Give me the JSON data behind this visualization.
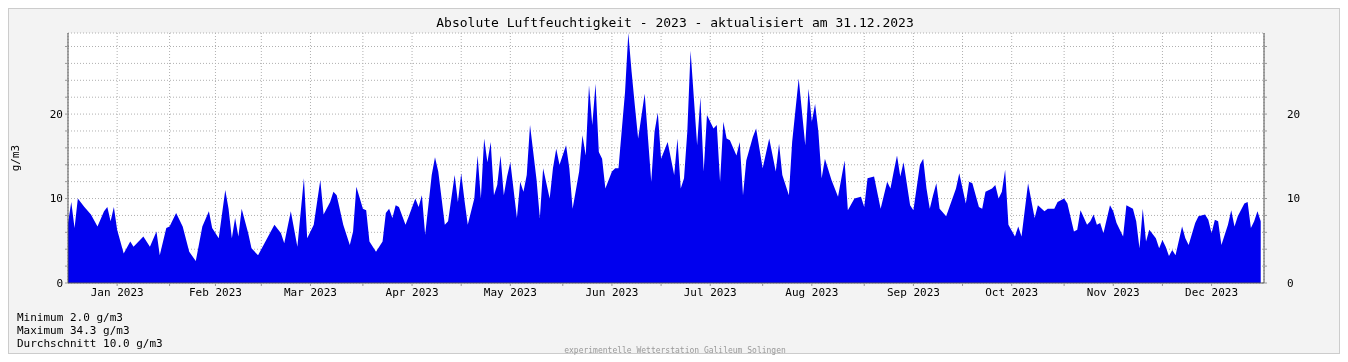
{
  "chart_data": {
    "type": "area",
    "title": "Absolute Luftfeuchtigkeit - 2023 - aktualisiert am 31.12.2023",
    "ylabel": "g/m3",
    "annotations": [
      "Minimum 2.0 g/m3",
      "Maximum 34.3 g/m3",
      "Durchschnitt 10.0 g/m3",
      "experimentelle Wetterstation Galileum Solingen"
    ],
    "x": [
      "2023-01-01",
      "2023-01-02",
      "2023-01-03",
      "2023-01-04",
      "2023-01-06",
      "2023-01-08",
      "2023-01-10",
      "2023-01-12",
      "2023-01-13",
      "2023-01-14",
      "2023-01-15",
      "2023-01-16",
      "2023-01-18",
      "2023-01-20",
      "2023-01-21",
      "2023-01-24",
      "2023-01-26",
      "2023-01-28",
      "2023-01-29",
      "2023-01-31",
      "2023-02-01",
      "2023-02-03",
      "2023-02-05",
      "2023-02-07",
      "2023-02-09",
      "2023-02-11",
      "2023-02-13",
      "2023-02-14",
      "2023-02-16",
      "2023-02-18",
      "2023-02-19",
      "2023-02-20",
      "2023-02-21",
      "2023-02-22",
      "2023-02-23",
      "2023-02-25",
      "2023-02-26",
      "2023-02-28",
      "2023-03-05",
      "2023-03-07",
      "2023-03-08",
      "2023-03-10",
      "2023-03-12",
      "2023-03-14",
      "2023-03-15",
      "2023-03-17",
      "2023-03-19",
      "2023-03-20",
      "2023-03-22",
      "2023-03-23",
      "2023-03-24",
      "2023-03-26",
      "2023-03-28",
      "2023-03-29",
      "2023-03-30",
      "2023-04-01",
      "2023-04-02",
      "2023-04-03",
      "2023-04-05",
      "2023-04-07",
      "2023-04-08",
      "2023-04-09",
      "2023-04-10",
      "2023-04-11",
      "2023-04-12",
      "2023-04-14",
      "2023-04-15",
      "2023-04-17",
      "2023-04-18",
      "2023-04-19",
      "2023-04-20",
      "2023-04-22",
      "2023-04-23",
      "2023-04-24",
      "2023-04-26",
      "2023-04-27",
      "2023-04-29",
      "2023-04-30",
      "2023-05-01",
      "2023-05-02",
      "2023-05-03",
      "2023-05-05",
      "2023-05-06",
      "2023-05-07",
      "2023-05-08",
      "2023-05-09",
      "2023-05-10",
      "2023-05-11",
      "2023-05-12",
      "2023-05-13",
      "2023-05-14",
      "2023-05-15",
      "2023-05-16",
      "2023-05-18",
      "2023-05-19",
      "2023-05-20",
      "2023-05-21",
      "2023-05-22",
      "2023-05-24",
      "2023-05-25",
      "2023-05-26",
      "2023-05-28",
      "2023-05-29",
      "2023-05-30",
      "2023-05-31",
      "2023-06-02",
      "2023-06-03",
      "2023-06-04",
      "2023-06-06",
      "2023-06-07",
      "2023-06-08",
      "2023-06-09",
      "2023-06-10",
      "2023-06-11",
      "2023-06-12",
      "2023-06-13",
      "2023-06-14",
      "2023-06-16",
      "2023-06-17",
      "2023-06-18",
      "2023-06-20",
      "2023-06-21",
      "2023-06-22",
      "2023-06-23",
      "2023-06-24",
      "2023-06-26",
      "2023-06-28",
      "2023-06-29",
      "2023-06-30",
      "2023-07-01",
      "2023-07-03",
      "2023-07-05",
      "2023-07-06",
      "2023-07-07",
      "2023-07-08",
      "2023-07-09",
      "2023-07-10",
      "2023-07-12",
      "2023-07-13",
      "2023-07-14",
      "2023-07-15",
      "2023-07-17",
      "2023-07-18",
      "2023-07-19",
      "2023-07-20",
      "2023-07-21",
      "2023-07-22",
      "2023-07-24",
      "2023-07-25",
      "2023-07-26",
      "2023-07-27",
      "2023-07-29",
      "2023-07-30",
      "2023-08-01",
      "2023-08-03",
      "2023-08-05",
      "2023-08-06",
      "2023-08-07",
      "2023-08-09",
      "2023-08-10",
      "2023-08-12",
      "2023-08-14",
      "2023-08-15",
      "2023-08-16",
      "2023-08-17",
      "2023-08-18",
      "2023-08-19",
      "2023-08-20",
      "2023-08-22",
      "2023-08-24",
      "2023-08-26",
      "2023-08-27",
      "2023-08-29",
      "2023-08-31",
      "2023-09-01",
      "2023-09-02",
      "2023-09-04",
      "2023-09-06",
      "2023-09-08",
      "2023-09-09",
      "2023-09-10",
      "2023-09-11",
      "2023-09-12",
      "2023-09-13",
      "2023-09-15",
      "2023-09-16",
      "2023-09-18",
      "2023-09-19",
      "2023-09-20",
      "2023-09-21",
      "2023-09-22",
      "2023-09-23",
      "2023-09-24",
      "2023-09-26",
      "2023-09-27",
      "2023-09-29",
      "2023-09-30",
      "2023-10-02",
      "2023-10-03",
      "2023-10-04",
      "2023-10-06",
      "2023-10-07",
      "2023-10-08",
      "2023-10-10",
      "2023-10-11",
      "2023-10-12",
      "2023-10-13",
      "2023-10-14",
      "2023-10-15",
      "2023-10-17",
      "2023-10-18",
      "2023-10-19",
      "2023-10-21",
      "2023-10-23",
      "2023-10-24",
      "2023-10-26",
      "2023-10-27",
      "2023-10-29",
      "2023-10-30",
      "2023-11-01",
      "2023-11-02",
      "2023-11-04",
      "2023-11-05",
      "2023-11-06",
      "2023-11-08",
      "2023-11-09",
      "2023-11-10",
      "2023-11-11",
      "2023-11-12",
      "2023-11-13",
      "2023-11-15",
      "2023-11-16",
      "2023-11-17",
      "2023-11-19",
      "2023-11-20",
      "2023-11-22",
      "2023-11-23",
      "2023-11-24",
      "2023-11-25",
      "2023-11-26",
      "2023-11-27",
      "2023-11-29",
      "2023-11-30",
      "2023-12-01",
      "2023-12-02",
      "2023-12-03",
      "2023-12-04",
      "2023-12-05",
      "2023-12-07",
      "2023-12-08",
      "2023-12-09",
      "2023-12-11",
      "2023-12-12",
      "2023-12-14",
      "2023-12-15",
      "2023-12-16",
      "2023-12-17",
      "2023-12-18",
      "2023-12-19",
      "2023-12-21",
      "2023-12-22",
      "2023-12-23",
      "2023-12-24",
      "2023-12-26",
      "2023-12-27",
      "2023-12-28",
      "2023-12-29",
      "2023-12-30",
      "2023-12-31"
    ],
    "series": [
      {
        "color": "#0000ee",
        "values": [
          7.1,
          9.6,
          6.5,
          10.0,
          9.0,
          8.1,
          6.7,
          8.5,
          9.0,
          7.3,
          9.0,
          6.3,
          3.5,
          4.9,
          4.3,
          5.5,
          4.3,
          6.1,
          3.3,
          6.5,
          6.7,
          8.3,
          6.7,
          3.7,
          2.6,
          6.7,
          8.5,
          6.5,
          5.3,
          11.0,
          8.8,
          5.3,
          7.7,
          5.5,
          8.8,
          5.9,
          4.1,
          3.3,
          6.9,
          5.9,
          4.7,
          8.5,
          4.3,
          12.4,
          5.3,
          6.9,
          12.2,
          8.1,
          9.6,
          10.8,
          10.4,
          6.9,
          4.5,
          6.1,
          11.4,
          8.8,
          8.6,
          4.9,
          3.7,
          4.9,
          8.3,
          8.8,
          7.7,
          9.2,
          9.0,
          6.9,
          7.9,
          10.0,
          9.0,
          10.4,
          5.7,
          12.8,
          14.9,
          13.2,
          6.9,
          7.3,
          12.8,
          9.6,
          13.0,
          9.8,
          6.9,
          10.0,
          15.1,
          10.0,
          17.1,
          14.3,
          16.7,
          10.4,
          11.6,
          15.1,
          10.4,
          12.6,
          14.3,
          7.7,
          12.0,
          10.8,
          12.8,
          18.7,
          12.2,
          7.7,
          13.6,
          10.0,
          13.6,
          15.9,
          14.0,
          16.3,
          13.6,
          8.8,
          13.2,
          17.5,
          15.1,
          23.4,
          18.7,
          23.6,
          15.5,
          14.7,
          11.2,
          13.2,
          13.6,
          13.6,
          22.6,
          29.6,
          25.0,
          21.0,
          17.1,
          22.4,
          12.0,
          17.9,
          20.2,
          14.7,
          16.7,
          12.8,
          17.1,
          11.2,
          12.4,
          17.9,
          27.5,
          16.3,
          22.0,
          13.2,
          19.9,
          18.3,
          18.7,
          12.0,
          19.1,
          17.1,
          16.9,
          15.1,
          16.7,
          10.4,
          14.5,
          17.3,
          18.3,
          13.6,
          17.1,
          13.2,
          16.5,
          12.8,
          10.4,
          16.7,
          24.2,
          16.3,
          23.0,
          19.1,
          21.2,
          17.9,
          12.4,
          14.7,
          12.2,
          10.2,
          14.5,
          8.6,
          10.0,
          10.2,
          9.0,
          12.4,
          12.6,
          8.8,
          12.0,
          11.2,
          13.2,
          15.1,
          12.6,
          14.3,
          9.2,
          8.6,
          14.0,
          14.7,
          11.2,
          8.8,
          10.4,
          11.8,
          8.8,
          7.9,
          9.0,
          11.2,
          13.0,
          9.4,
          12.0,
          11.8,
          9.0,
          8.8,
          10.8,
          11.2,
          11.6,
          10.0,
          10.8,
          13.4,
          6.9,
          5.5,
          6.7,
          5.5,
          11.8,
          7.7,
          9.2,
          8.5,
          8.8,
          8.8,
          9.6,
          10.0,
          9.4,
          6.1,
          6.3,
          8.6,
          6.9,
          7.3,
          8.1,
          6.9,
          7.1,
          5.9,
          9.2,
          8.5,
          7.1,
          5.5,
          9.2,
          8.8,
          7.3,
          4.1,
          8.8,
          4.9,
          6.3,
          5.3,
          4.1,
          5.1,
          4.3,
          3.2,
          3.9,
          3.3,
          6.7,
          5.3,
          4.5,
          7.1,
          7.9,
          8.1,
          7.5,
          5.9,
          7.5,
          7.3,
          4.5,
          6.9,
          8.6,
          6.7,
          7.9,
          9.4,
          9.6,
          6.5,
          7.3,
          8.5,
          7.3
        ]
      }
    ],
    "xlim": [
      "2023-01-01",
      "2024-01-01"
    ],
    "xticks": [
      {
        "value": "2023-01-16",
        "label": "Jan 2023"
      },
      {
        "value": "2023-02-01",
        "label": null
      },
      {
        "value": "2023-02-15",
        "label": "Feb 2023"
      },
      {
        "value": "2023-03-01",
        "label": null
      },
      {
        "value": "2023-03-16",
        "label": "Mar 2023"
      },
      {
        "value": "2023-04-01",
        "label": null
      },
      {
        "value": "2023-04-16",
        "label": "Apr 2023"
      },
      {
        "value": "2023-05-01",
        "label": null
      },
      {
        "value": "2023-05-16",
        "label": "May 2023"
      },
      {
        "value": "2023-06-01",
        "label": null
      },
      {
        "value": "2023-06-16",
        "label": "Jun 2023"
      },
      {
        "value": "2023-07-01",
        "label": null
      },
      {
        "value": "2023-07-16",
        "label": "Jul 2023"
      },
      {
        "value": "2023-08-01",
        "label": null
      },
      {
        "value": "2023-08-16",
        "label": "Aug 2023"
      },
      {
        "value": "2023-09-01",
        "label": null
      },
      {
        "value": "2023-09-16",
        "label": "Sep 2023"
      },
      {
        "value": "2023-10-01",
        "label": null
      },
      {
        "value": "2023-10-16",
        "label": "Oct 2023"
      },
      {
        "value": "2023-11-01",
        "label": null
      },
      {
        "value": "2023-11-16",
        "label": "Nov 2023"
      },
      {
        "value": "2023-12-01",
        "label": null
      },
      {
        "value": "2023-12-16",
        "label": "Dec 2023"
      }
    ],
    "ylim": [
      0,
      29.6
    ],
    "yticks": [
      0,
      {
        "value": 2,
        "label": null
      },
      {
        "value": 4,
        "label": null
      },
      {
        "value": 6,
        "label": null
      },
      {
        "value": 8,
        "label": null
      },
      10,
      {
        "value": 12,
        "label": null
      },
      {
        "value": 14,
        "label": null
      },
      {
        "value": 16,
        "label": null
      },
      {
        "value": 18,
        "label": null
      },
      20,
      {
        "value": 22,
        "label": null
      },
      {
        "value": 24,
        "label": null
      },
      {
        "value": 26,
        "label": null
      },
      {
        "value": 28,
        "label": null
      }
    ],
    "y2lim": [
      0,
      29.6
    ],
    "y2ticks": [
      0,
      {
        "value": 2,
        "label": null
      },
      {
        "value": 4,
        "label": null
      },
      {
        "value": 6,
        "label": null
      },
      {
        "value": 8,
        "label": null
      },
      10,
      {
        "value": 12,
        "label": null
      },
      {
        "value": 14,
        "label": null
      },
      {
        "value": 16,
        "label": null
      },
      {
        "value": 18,
        "label": null
      },
      20,
      {
        "value": 22,
        "label": null
      },
      {
        "value": 24,
        "label": null
      },
      {
        "value": 26,
        "label": null
      },
      {
        "value": 28,
        "label": null
      }
    ],
    "grid": true,
    "legend": false
  }
}
